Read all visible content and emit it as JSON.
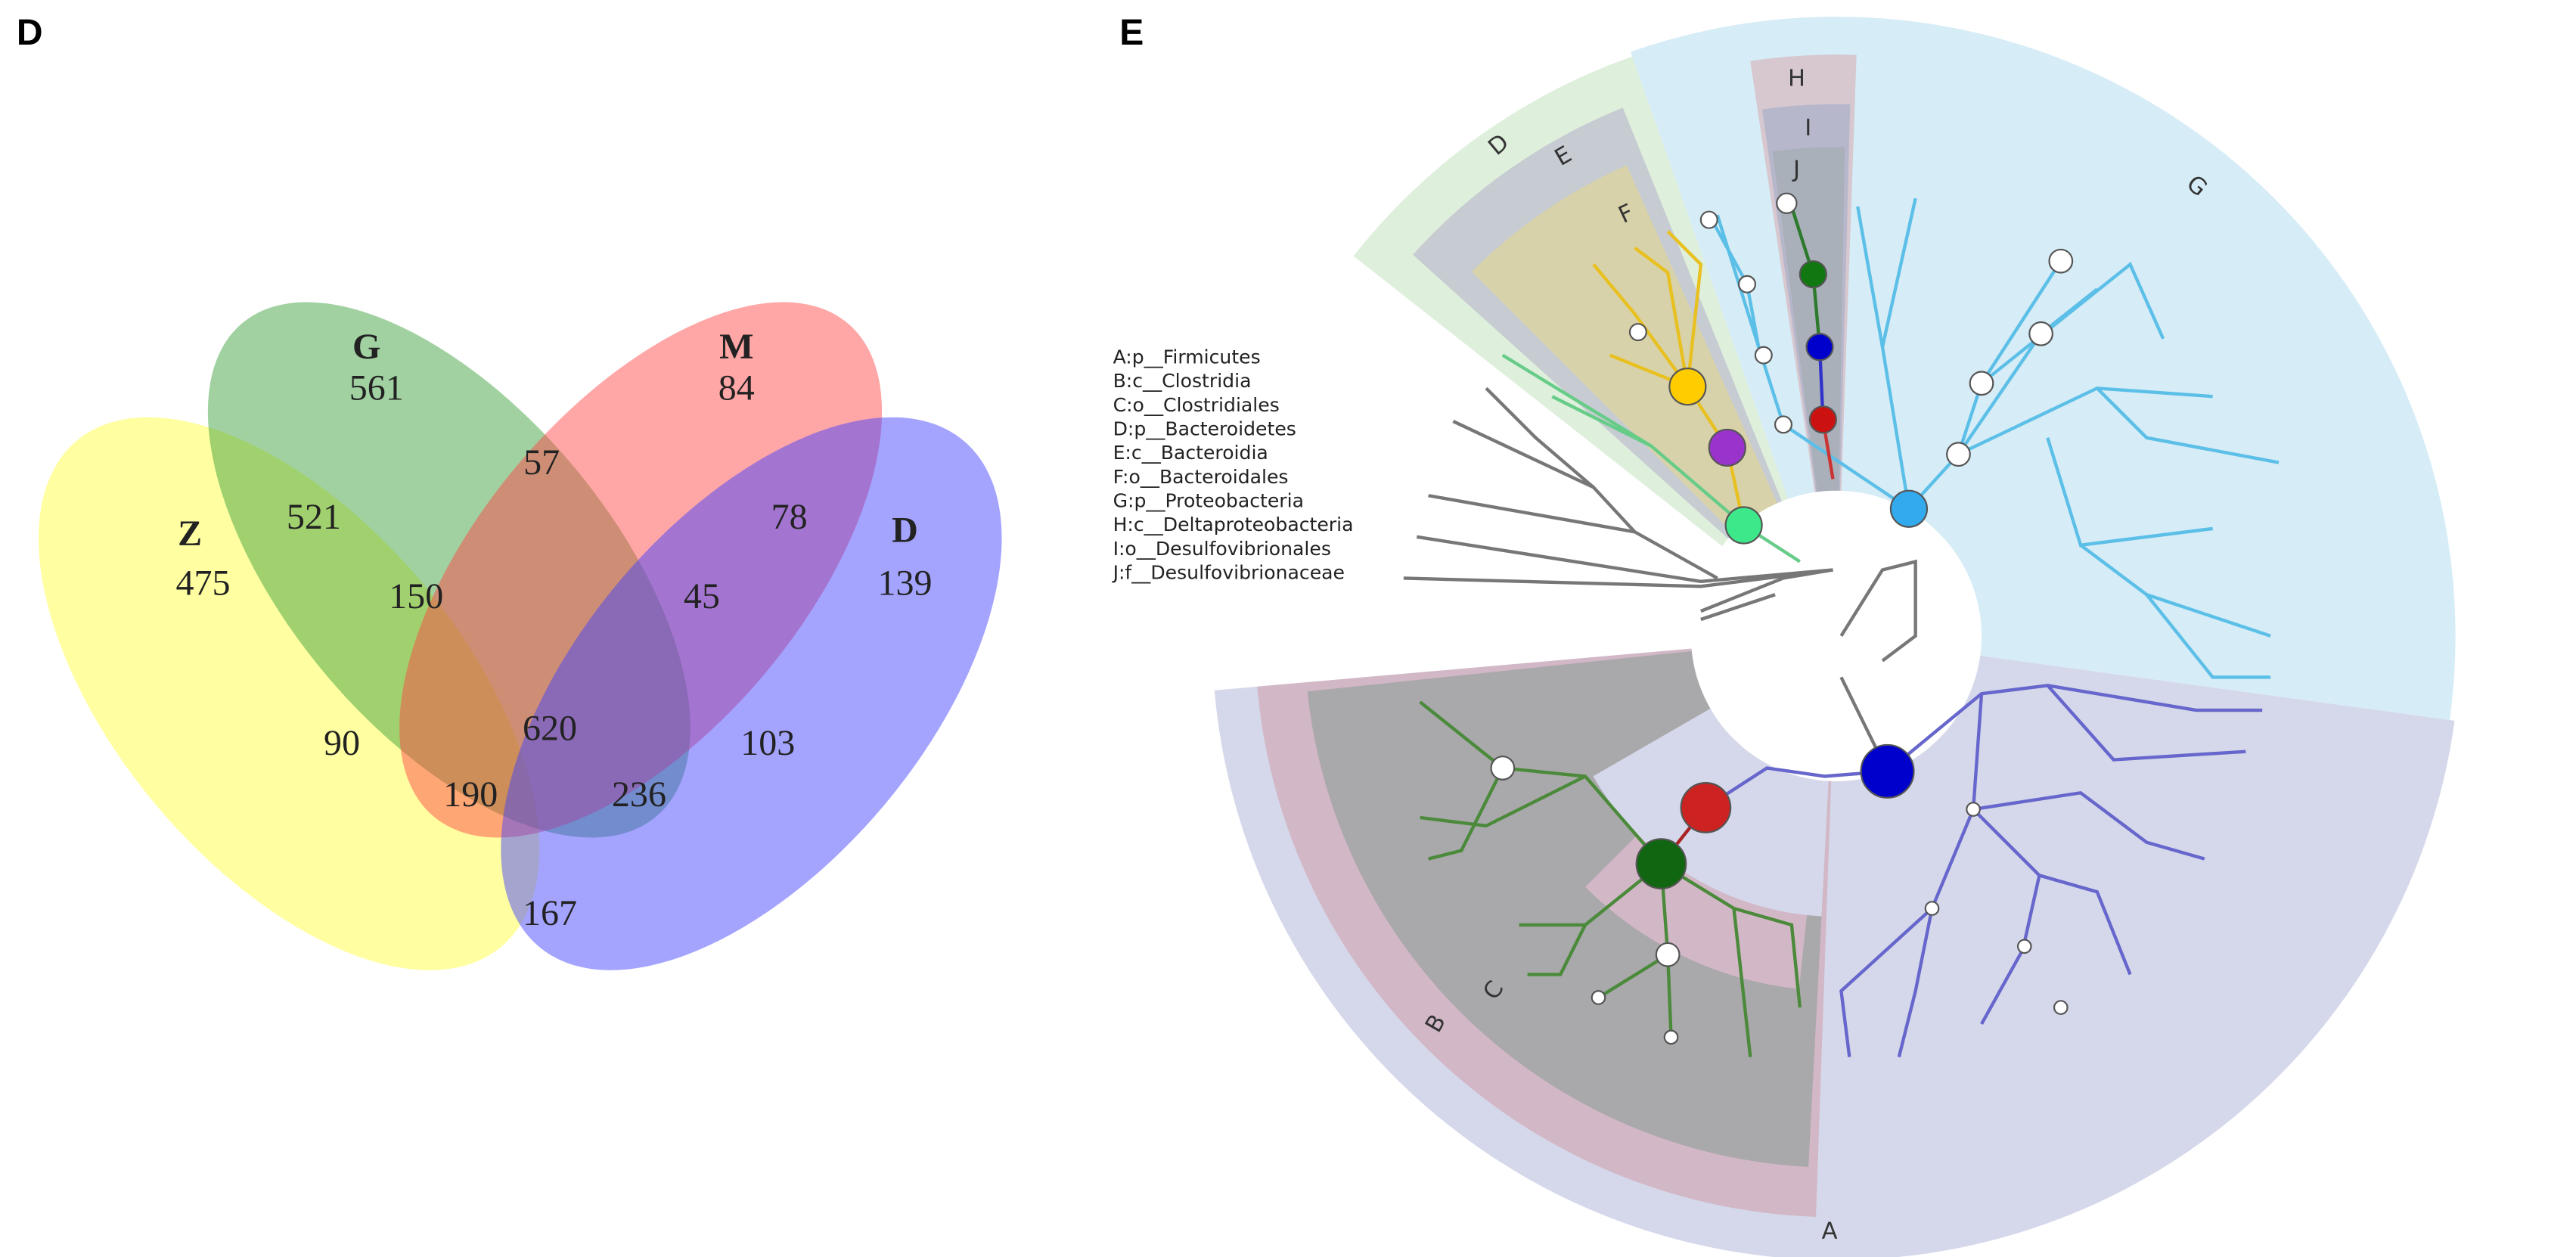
{
  "panel_d": {
    "label": "D",
    "sets": [
      {
        "name": "Z",
        "count": 475
      },
      {
        "name": "G",
        "count": 561
      },
      {
        "name": "M",
        "count": 84
      },
      {
        "name": "D",
        "count": 139
      }
    ],
    "regions": [
      521,
      57,
      78,
      150,
      45,
      90,
      620,
      103,
      190,
      236,
      167
    ]
  },
  "panel_e": {
    "label": "E",
    "legend": [
      "A:p__Firmicutes",
      "B:c__Clostridia",
      "C:o__Clostridiales",
      "D:p__Bacteroidetes",
      "E:c__Bacteroidia",
      "F:o__Bacteroidales",
      "G:p__Proteobacteria",
      "H:c__Deltaproteobacteria",
      "I:o__Desulfovibrionales",
      "J:f__Desulfovibrionaceae"
    ],
    "clade_labels": [
      "A",
      "B",
      "C",
      "D",
      "E",
      "F",
      "G",
      "H",
      "I",
      "J"
    ]
  }
}
